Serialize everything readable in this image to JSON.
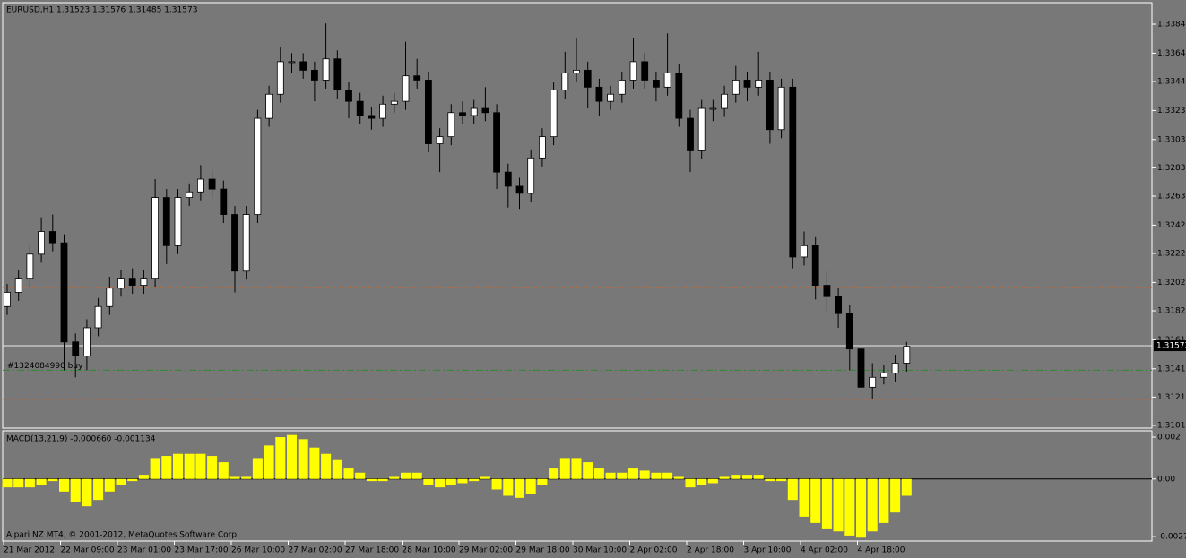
{
  "chart_data": {
    "type": "candlestick",
    "title": "EURUSD,H1  1.31523 1.31576 1.31485 1.31573",
    "categories": [
      "21 Mar 2012",
      null,
      null,
      null,
      null,
      "22 Mar 09:00",
      null,
      null,
      null,
      null,
      "23 Mar 01:00",
      null,
      null,
      null,
      null,
      "23 Mar 17:00",
      null,
      null,
      null,
      null,
      "26 Mar 10:00",
      null,
      null,
      null,
      null,
      "27 Mar 02:00",
      null,
      null,
      null,
      null,
      "27 Mar 18:00",
      null,
      null,
      null,
      null,
      "28 Mar 10:00",
      null,
      null,
      null,
      null,
      "29 Mar 02:00",
      null,
      null,
      null,
      null,
      "29 Mar 18:00",
      null,
      null,
      null,
      null,
      "30 Mar 10:00",
      null,
      null,
      null,
      null,
      "2 Apr 02:00",
      null,
      null,
      null,
      null,
      "2 Apr 18:00",
      null,
      null,
      null,
      null,
      "3 Apr 10:00",
      null,
      null,
      null,
      null,
      "4 Apr 02:00",
      null,
      null,
      null,
      null,
      "4 Apr 18:00",
      null,
      null,
      null,
      null
    ],
    "open": [
      1.3185,
      1.3195,
      1.3205,
      1.3222,
      1.3238,
      1.323,
      1.316,
      1.315,
      1.317,
      1.3185,
      1.3198,
      1.3205,
      1.32,
      1.3205,
      1.3262,
      1.3228,
      1.3262,
      1.3266,
      1.3275,
      1.3268,
      1.325,
      1.321,
      1.325,
      1.3318,
      1.3335,
      1.3358,
      1.3358,
      1.3352,
      1.3345,
      1.336,
      1.3338,
      1.333,
      1.332,
      1.3318,
      1.3328,
      1.333,
      1.3348,
      1.3345,
      1.33,
      1.3305,
      1.3322,
      1.332,
      1.3325,
      1.3322,
      1.328,
      1.327,
      1.3265,
      1.329,
      1.3305,
      1.3338,
      1.335,
      1.3352,
      1.334,
      1.333,
      1.3335,
      1.3345,
      1.3358,
      1.3345,
      1.334,
      1.335,
      1.3318,
      1.3295,
      1.3325,
      1.3325,
      1.3335,
      1.3345,
      1.334,
      1.3345,
      1.331,
      1.334,
      1.322,
      1.3228,
      1.32,
      1.3192,
      1.318,
      1.3155,
      1.3128,
      1.3135,
      1.3138,
      1.3145
    ],
    "high": [
      1.3201,
      1.3211,
      1.3228,
      1.3248,
      1.325,
      1.3236,
      1.3166,
      1.3176,
      1.3191,
      1.3206,
      1.3211,
      1.3212,
      1.3211,
      1.3275,
      1.3268,
      1.3268,
      1.3272,
      1.3285,
      1.3281,
      1.3274,
      1.3256,
      1.3256,
      1.3324,
      1.3341,
      1.3368,
      1.3364,
      1.3364,
      1.3358,
      1.3385,
      1.3366,
      1.3344,
      1.3336,
      1.3326,
      1.3334,
      1.3336,
      1.3372,
      1.336,
      1.3351,
      1.3311,
      1.3328,
      1.333,
      1.3331,
      1.334,
      1.3328,
      1.3286,
      1.3276,
      1.3296,
      1.3311,
      1.3344,
      1.3365,
      1.3375,
      1.3358,
      1.3346,
      1.3341,
      1.3351,
      1.3375,
      1.3364,
      1.3351,
      1.3378,
      1.3356,
      1.3324,
      1.3331,
      1.3331,
      1.3341,
      1.3355,
      1.3351,
      1.3365,
      1.3351,
      1.3346,
      1.3346,
      1.3238,
      1.3234,
      1.321,
      1.3198,
      1.3186,
      1.3161,
      1.3145,
      1.3144,
      1.3151,
      1.316
    ],
    "low": [
      1.3179,
      1.3189,
      1.3199,
      1.3216,
      1.3224,
      1.314,
      1.3135,
      1.314,
      1.3164,
      1.3179,
      1.3192,
      1.3194,
      1.3194,
      1.3199,
      1.3215,
      1.3222,
      1.3256,
      1.326,
      1.3262,
      1.3244,
      1.3195,
      1.3204,
      1.3244,
      1.3312,
      1.3329,
      1.335,
      1.3346,
      1.333,
      1.3339,
      1.3332,
      1.3318,
      1.3314,
      1.331,
      1.3312,
      1.3322,
      1.3324,
      1.3339,
      1.3294,
      1.328,
      1.3299,
      1.3314,
      1.3314,
      1.3316,
      1.3268,
      1.3255,
      1.3254,
      1.3259,
      1.3284,
      1.3299,
      1.3332,
      1.3344,
      1.3325,
      1.332,
      1.3324,
      1.3329,
      1.3339,
      1.3339,
      1.333,
      1.3334,
      1.3312,
      1.328,
      1.3289,
      1.3316,
      1.3319,
      1.3329,
      1.333,
      1.3334,
      1.33,
      1.3304,
      1.3212,
      1.3214,
      1.319,
      1.3182,
      1.317,
      1.314,
      1.3105,
      1.312,
      1.313,
      1.3132,
      1.3139
    ],
    "close": [
      1.3195,
      1.3205,
      1.3222,
      1.3238,
      1.323,
      1.316,
      1.315,
      1.317,
      1.3185,
      1.3198,
      1.3205,
      1.32,
      1.3205,
      1.3262,
      1.3228,
      1.3262,
      1.3266,
      1.3275,
      1.3268,
      1.325,
      1.321,
      1.325,
      1.3318,
      1.3335,
      1.3358,
      1.3358,
      1.3352,
      1.3345,
      1.336,
      1.3338,
      1.333,
      1.332,
      1.3318,
      1.3328,
      1.333,
      1.3348,
      1.3345,
      1.33,
      1.3305,
      1.3322,
      1.332,
      1.3325,
      1.3322,
      1.328,
      1.327,
      1.3265,
      1.329,
      1.3305,
      1.3338,
      1.335,
      1.3352,
      1.334,
      1.333,
      1.3335,
      1.3345,
      1.3358,
      1.3345,
      1.334,
      1.335,
      1.3318,
      1.3295,
      1.3325,
      1.3325,
      1.3335,
      1.3345,
      1.334,
      1.3345,
      1.331,
      1.334,
      1.322,
      1.3228,
      1.32,
      1.3192,
      1.318,
      1.3155,
      1.3128,
      1.3135,
      1.3138,
      1.3145,
      1.3157
    ],
    "ylim": [
      1.30991,
      1.33997
    ],
    "yticks": [
      1.33845,
      {
        "value": 1.3364,
        "label": "1.33640"
      },
      {
        "value": 1.3344,
        "label": "1.33440"
      },
      1.33235,
      {
        "value": 1.3303,
        "label": "1.33030"
      },
      {
        "value": 1.3283,
        "label": "1.32830"
      },
      {
        "value": 1.3263,
        "label": "1.32630"
      },
      1.32425,
      1.32225,
      {
        "value": 1.3202,
        "label": "1.32020"
      },
      {
        "value": 1.3182,
        "label": "1.31820"
      },
      1.31615,
      {
        "value": 1.3141,
        "label": "1.31410"
      },
      {
        "value": 1.3121,
        "label": "1.31210"
      },
      {
        "value": 1.3101,
        "label": "1.31010"
      }
    ],
    "bid": 1.31573,
    "levels": [
      {
        "value": 1.31985,
        "color": "#d2642a"
      },
      {
        "value": 1.31194,
        "color": "#d2642a"
      }
    ],
    "order": {
      "value": 1.314,
      "label": "#1324084990 buy",
      "color": "#2e8b2e"
    },
    "indicator": {
      "title": "MACD(13,21,9) -0.000660 -0.001134",
      "color": "#ffff00",
      "values": [
        -0.0004,
        -0.0004,
        -0.0004,
        -0.0003,
        -0.0001,
        -0.0006,
        -0.0011,
        -0.0013,
        -0.001,
        -0.0006,
        -0.0003,
        -0.0001,
        0.0002,
        0.001,
        0.0011,
        0.0012,
        0.0012,
        0.0012,
        0.0011,
        0.0008,
        0.0001,
        0.0001,
        0.001,
        0.0016,
        0.002,
        0.0021,
        0.0019,
        0.0015,
        0.0012,
        0.0009,
        0.0005,
        0.0003,
        -0.0001,
        -0.0001,
        0.0001,
        0.0003,
        0.0003,
        -0.0003,
        -0.0004,
        -0.0003,
        -0.0002,
        -0.0001,
        0.0001,
        -0.0005,
        -0.0008,
        -0.0009,
        -0.0007,
        -0.0003,
        0.0005,
        0.001,
        0.001,
        0.0008,
        0.0005,
        0.0003,
        0.0003,
        0.0005,
        0.0004,
        0.0003,
        0.0003,
        0.0001,
        -0.0004,
        -0.0003,
        -0.0002,
        0.0001,
        0.0002,
        0.0002,
        0.0002,
        -0.0001,
        -0.0001,
        -0.001,
        -0.0018,
        -0.0021,
        -0.0024,
        -0.0025,
        -0.0027,
        -0.0028,
        -0.0025,
        -0.0021,
        -0.0016,
        -0.0008
      ],
      "ylim": [
        -0.00296,
        0.0023
      ],
      "yticks": [
        0.002,
        {
          "value": 0,
          "label": "0.00"
        },
        -0.00275
      ]
    },
    "footer": "Alpari NZ MT4, © 2001-2012, MetaQuotes Software Corp."
  }
}
